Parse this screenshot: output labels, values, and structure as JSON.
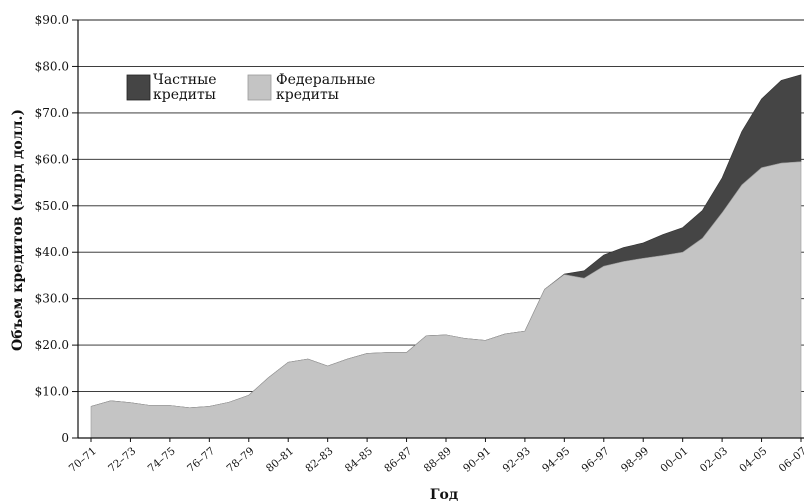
{
  "chart_data": {
    "type": "area",
    "stacked": true,
    "xlabel": "Год",
    "ylabel": "Объем кредитов (млрд долл.)",
    "ylim": [
      0,
      90
    ],
    "yticks": [
      {
        "value": 0,
        "label": "0"
      },
      {
        "value": 10,
        "label": "$10.0"
      },
      {
        "value": 20,
        "label": "$20.0"
      },
      {
        "value": 30,
        "label": "$30.0"
      },
      {
        "value": 40,
        "label": "$40.0"
      },
      {
        "value": 50,
        "label": "$50.0"
      },
      {
        "value": 60,
        "label": "$60.0"
      },
      {
        "value": 70,
        "label": "$70.0"
      },
      {
        "value": 80,
        "label": "$80.0"
      },
      {
        "value": 90,
        "label": "$90.0"
      }
    ],
    "grid": "horizontal",
    "legend_position": "top-left",
    "x": [
      "70–71",
      "71–72",
      "72–73",
      "73–74",
      "74–75",
      "75–76",
      "76–77",
      "77–78",
      "78–79",
      "79–80",
      "80–81",
      "81–82",
      "82–83",
      "83–84",
      "84–85",
      "85–86",
      "86–87",
      "87–88",
      "88–89",
      "89–90",
      "90–91",
      "91–92",
      "92–93",
      "93–94",
      "94–95",
      "95–96",
      "96–97",
      "97–98",
      "98–99",
      "99–00",
      "00–01",
      "01–02",
      "02–03",
      "03–04",
      "04–05",
      "05–06",
      "06–07"
    ],
    "x_tick_labels": [
      "70–71",
      "72–73",
      "74–75",
      "76–77",
      "78–79",
      "80–81",
      "82–83",
      "84–85",
      "86–87",
      "88–89",
      "90–91",
      "92–93",
      "94–95",
      "96–97",
      "98–99",
      "00–01",
      "02–03",
      "04–05",
      "06–07"
    ],
    "series": [
      {
        "name": "Федеральные кредиты",
        "color": "#c4c4c4",
        "values": [
          6.8,
          8.0,
          7.6,
          7.0,
          7.0,
          6.5,
          6.8,
          7.7,
          9.2,
          13.0,
          16.3,
          17.0,
          15.5,
          17.0,
          18.2,
          18.4,
          18.4,
          22.0,
          22.2,
          21.4,
          21.0,
          22.4,
          23.0,
          32.0,
          35.2,
          34.4,
          37.0,
          38.0,
          38.7,
          39.3,
          40.0,
          43.0,
          48.5,
          54.5,
          58.2,
          59.2,
          59.5
        ]
      },
      {
        "name": "Частные кредиты",
        "color": "#454545",
        "values": [
          0,
          0,
          0,
          0,
          0,
          0,
          0,
          0,
          0,
          0,
          0,
          0,
          0,
          0,
          0,
          0,
          0,
          0,
          0,
          0,
          0,
          0,
          0,
          0,
          0.1,
          1.6,
          2.4,
          3.0,
          3.3,
          4.5,
          5.3,
          6.0,
          7.5,
          11.5,
          14.8,
          17.8,
          18.7
        ]
      }
    ],
    "legend": [
      {
        "label": "Частные\nкредиты",
        "color": "#454545"
      },
      {
        "label": "Федеральные\nкредиты",
        "color": "#c4c4c4"
      }
    ]
  }
}
